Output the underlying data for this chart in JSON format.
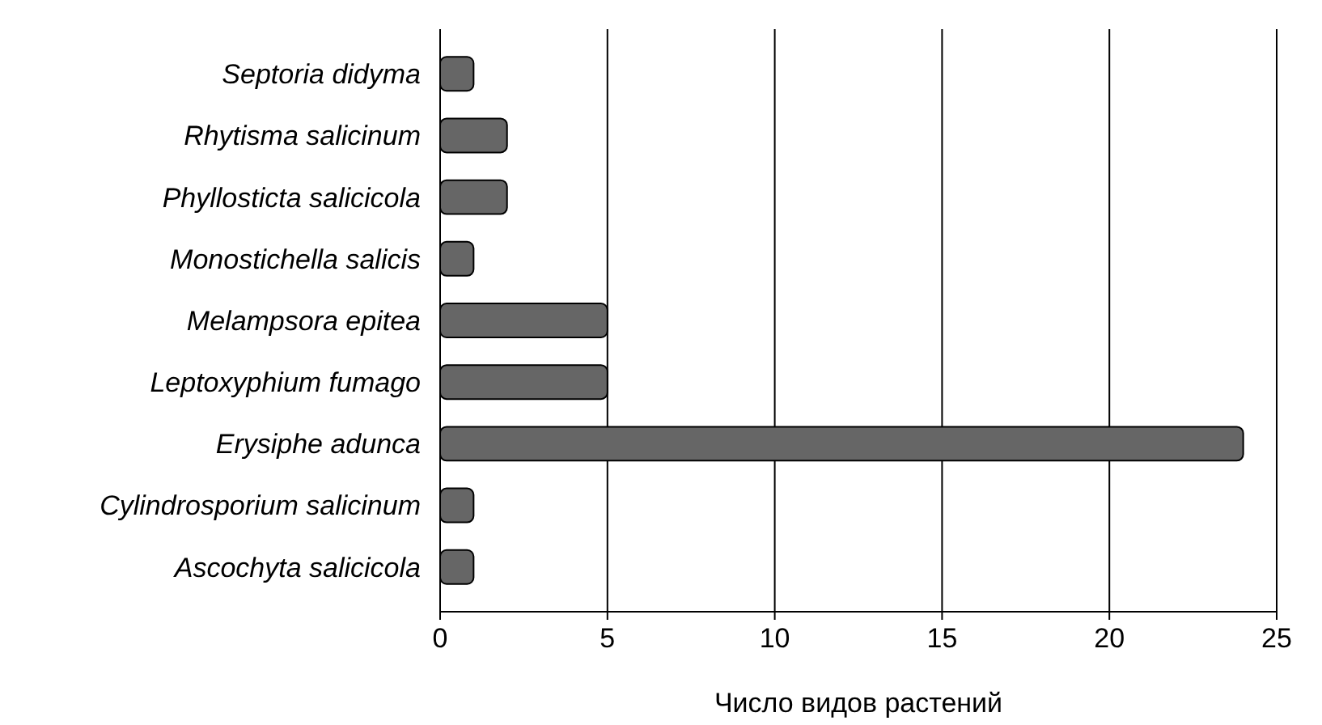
{
  "chart_data": {
    "type": "bar",
    "orientation": "horizontal",
    "xlabel": "Число видов растений",
    "categories": [
      "Septoria didyma",
      "Rhytisma salicinum",
      "Phyllosticta salicicola",
      "Monostichella salicis",
      "Melampsora epitea",
      "Leptoxyphium fumago",
      "Erysiphe adunca",
      "Cylindrosporium salicinum",
      "Ascochyta salicicola"
    ],
    "values": [
      1,
      2,
      2,
      1,
      5,
      5,
      24,
      1,
      1
    ],
    "color": "#666666",
    "xlim": [
      0,
      25
    ],
    "xticks": [
      0,
      5,
      10,
      15,
      20,
      25
    ],
    "grid": "x"
  }
}
